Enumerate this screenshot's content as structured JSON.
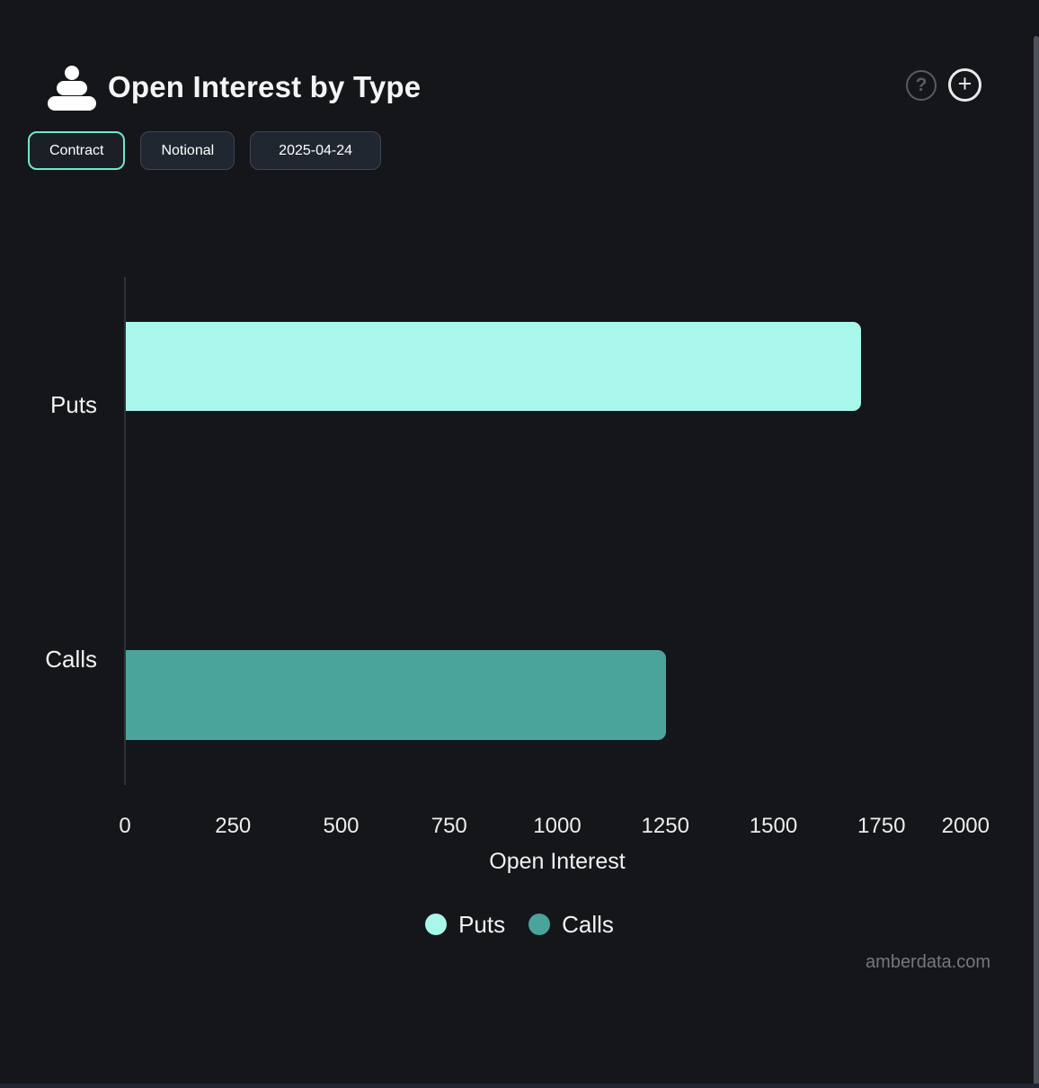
{
  "header": {
    "title": "Open Interest by Type",
    "help_label": "?",
    "add_label": "+"
  },
  "toolbar": {
    "buttons": [
      {
        "label": "Contract",
        "active": true
      },
      {
        "label": "Notional",
        "active": false
      },
      {
        "label": "2025-04-24",
        "active": false
      }
    ]
  },
  "watermark": "amberdata.com",
  "colors": {
    "background": "#15161a",
    "puts": "#a9f7ea",
    "calls": "#4aa49b",
    "accent_border": "#6fe8cb",
    "axis_line": "#2f3338"
  },
  "chart_data": {
    "type": "bar",
    "orientation": "horizontal",
    "title": "Open Interest by Type",
    "categories": [
      "Puts",
      "Calls"
    ],
    "series": [
      {
        "name": "Puts",
        "value": 1700,
        "color": "#a9f7ea"
      },
      {
        "name": "Calls",
        "value": 1250,
        "color": "#4aa49b"
      }
    ],
    "xlabel": "Open Interest",
    "xticks": [
      0,
      250,
      500,
      750,
      1000,
      1250,
      1500,
      1750,
      2000
    ],
    "xlim": [
      0,
      2000
    ],
    "grid": false,
    "legend": [
      "Puts",
      "Calls"
    ],
    "legend_position": "bottom"
  }
}
